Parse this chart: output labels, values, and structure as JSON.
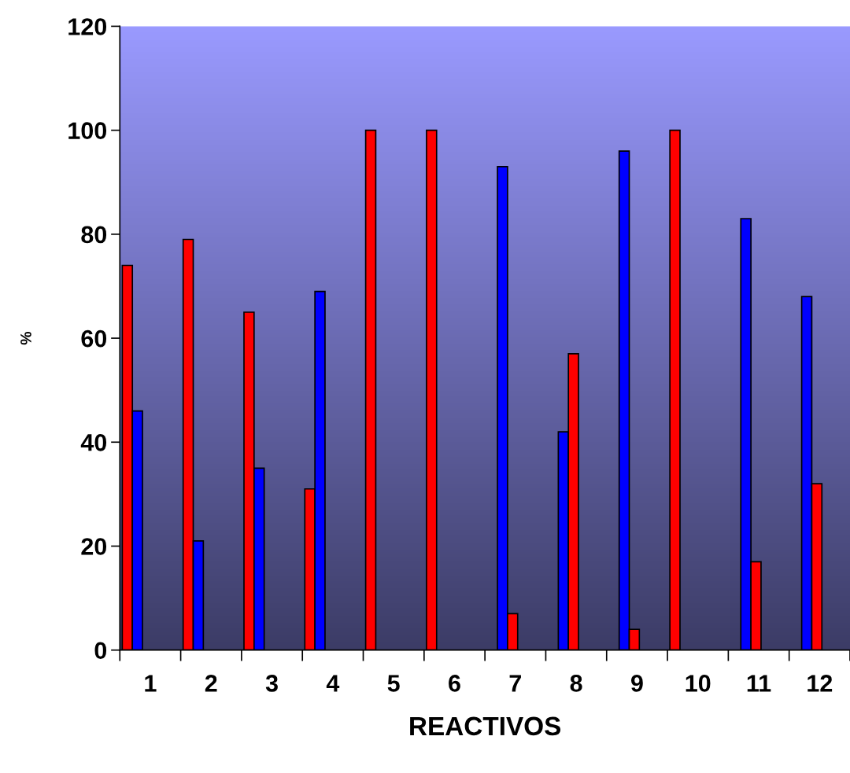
{
  "chart_data": {
    "type": "bar",
    "xlabel": "REACTIVOS",
    "ylabel": "%",
    "categories": [
      "1",
      "2",
      "3",
      "4",
      "5",
      "6",
      "7",
      "8",
      "9",
      "10",
      "11",
      "12"
    ],
    "series": [
      {
        "color": "#ff0000",
        "values": [
          74,
          79,
          65,
          31,
          100,
          100,
          null,
          null,
          null,
          100,
          null,
          null
        ]
      },
      {
        "color": "#0000ff",
        "values": [
          46,
          21,
          35,
          69,
          null,
          null,
          93,
          42,
          96,
          null,
          83,
          68
        ]
      },
      {
        "color": "#ff0000",
        "values": [
          null,
          null,
          null,
          null,
          null,
          null,
          7,
          57,
          4,
          null,
          17,
          32
        ]
      }
    ],
    "ylim": [
      0,
      120
    ],
    "yticks": [
      0,
      20,
      40,
      60,
      80,
      100,
      120
    ],
    "grid": false,
    "legend": false
  }
}
